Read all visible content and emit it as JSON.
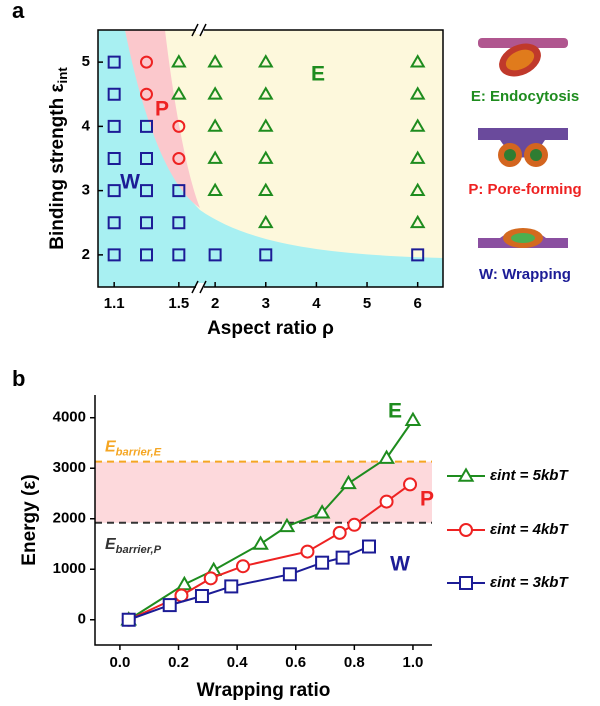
{
  "chart_data": [
    {
      "panel": "a",
      "type": "scatter",
      "xlabel": "Aspect ratio ρ",
      "ylabel": "Binding strength ε",
      "ylabel_subscript": "int",
      "xlim": [
        1.0,
        6.5
      ],
      "xbreak": [
        1.6,
        1.8
      ],
      "ylim": [
        1.5,
        5.5
      ],
      "xticks": [
        1.1,
        1.5,
        2,
        3,
        4,
        5,
        6
      ],
      "yticks": [
        2,
        3,
        4,
        5
      ],
      "annotations": [
        "E",
        "P",
        "W"
      ],
      "series": [
        {
          "name": "E: Endocytosis",
          "color": "#1e8c1e",
          "marker": "triangle",
          "x": [
            1.5,
            1.5,
            2,
            2,
            2,
            2,
            2,
            3,
            3,
            3,
            3,
            3,
            3,
            6,
            6,
            6,
            6,
            6,
            6
          ],
          "y": [
            4.5,
            5,
            3,
            3.5,
            4,
            4.5,
            5,
            2.5,
            3,
            3.5,
            4,
            4.5,
            5,
            2.5,
            3,
            3.5,
            4,
            4.5,
            5
          ]
        },
        {
          "name": "P: Pore-forming",
          "color": "#ee2222",
          "marker": "circle",
          "x": [
            1.3,
            1.3,
            1.5,
            1.5
          ],
          "y": [
            4.5,
            5,
            3.5,
            4
          ]
        },
        {
          "name": "W: Wrapping",
          "color": "#1c1c96",
          "marker": "square",
          "x": [
            1.1,
            1.1,
            1.1,
            1.1,
            1.1,
            1.1,
            1.1,
            1.3,
            1.3,
            1.3,
            1.3,
            1.3,
            1.5,
            1.5,
            1.5,
            2,
            3,
            6
          ],
          "y": [
            2,
            2.5,
            3,
            3.5,
            4,
            4.5,
            5,
            2,
            2.5,
            3,
            3.5,
            4,
            2,
            2.5,
            3,
            2,
            2,
            2
          ]
        }
      ]
    },
    {
      "panel": "b",
      "type": "line",
      "xlabel": "Wrapping ratio",
      "ylabel": "Energy (ε)",
      "xlim": [
        -0.085,
        1.065
      ],
      "ylim": [
        -500,
        4450
      ],
      "xticks": [
        {
          "value": 0,
          "label": "0.0"
        },
        {
          "value": 0.2,
          "label": "0.2"
        },
        {
          "value": 0.4,
          "label": "0.4"
        },
        {
          "value": 0.6,
          "label": "0.6"
        },
        {
          "value": 0.8,
          "label": "0.8"
        },
        {
          "value": 1,
          "label": "1.0"
        }
      ],
      "yticks": [
        0,
        1000,
        2000,
        3000,
        4000
      ],
      "hlines": [
        {
          "value": 3130,
          "label": "E",
          "label_subscript": "barrier,E",
          "color": "#f5a623"
        },
        {
          "value": 1920,
          "label": "E",
          "label_subscript": "barrier,P",
          "color": "#333333"
        }
      ],
      "band_color": "#fdd9dc",
      "annotations": [
        "E",
        "P",
        "W"
      ],
      "series": [
        {
          "name": "εint = 5kbT",
          "color": "#1e8c1e",
          "marker": "triangle",
          "x": [
            0.03,
            0.22,
            0.32,
            0.48,
            0.57,
            0.69,
            0.78,
            0.91,
            1.0
          ],
          "values": [
            0,
            700,
            980,
            1500,
            1850,
            2120,
            2700,
            3200,
            3950
          ]
        },
        {
          "name": "εint = 4kbT",
          "color": "#ee2222",
          "marker": "circle",
          "x": [
            0.03,
            0.21,
            0.31,
            0.42,
            0.64,
            0.75,
            0.8,
            0.91,
            0.99
          ],
          "values": [
            0,
            480,
            820,
            1060,
            1350,
            1720,
            1880,
            2340,
            2680
          ]
        },
        {
          "name": "εint = 3kbT",
          "color": "#1c1c96",
          "marker": "square",
          "x": [
            0.03,
            0.17,
            0.28,
            0.38,
            0.58,
            0.69,
            0.76,
            0.85
          ],
          "values": [
            0,
            290,
            470,
            660,
            900,
            1130,
            1230,
            1450
          ]
        }
      ]
    }
  ]
}
